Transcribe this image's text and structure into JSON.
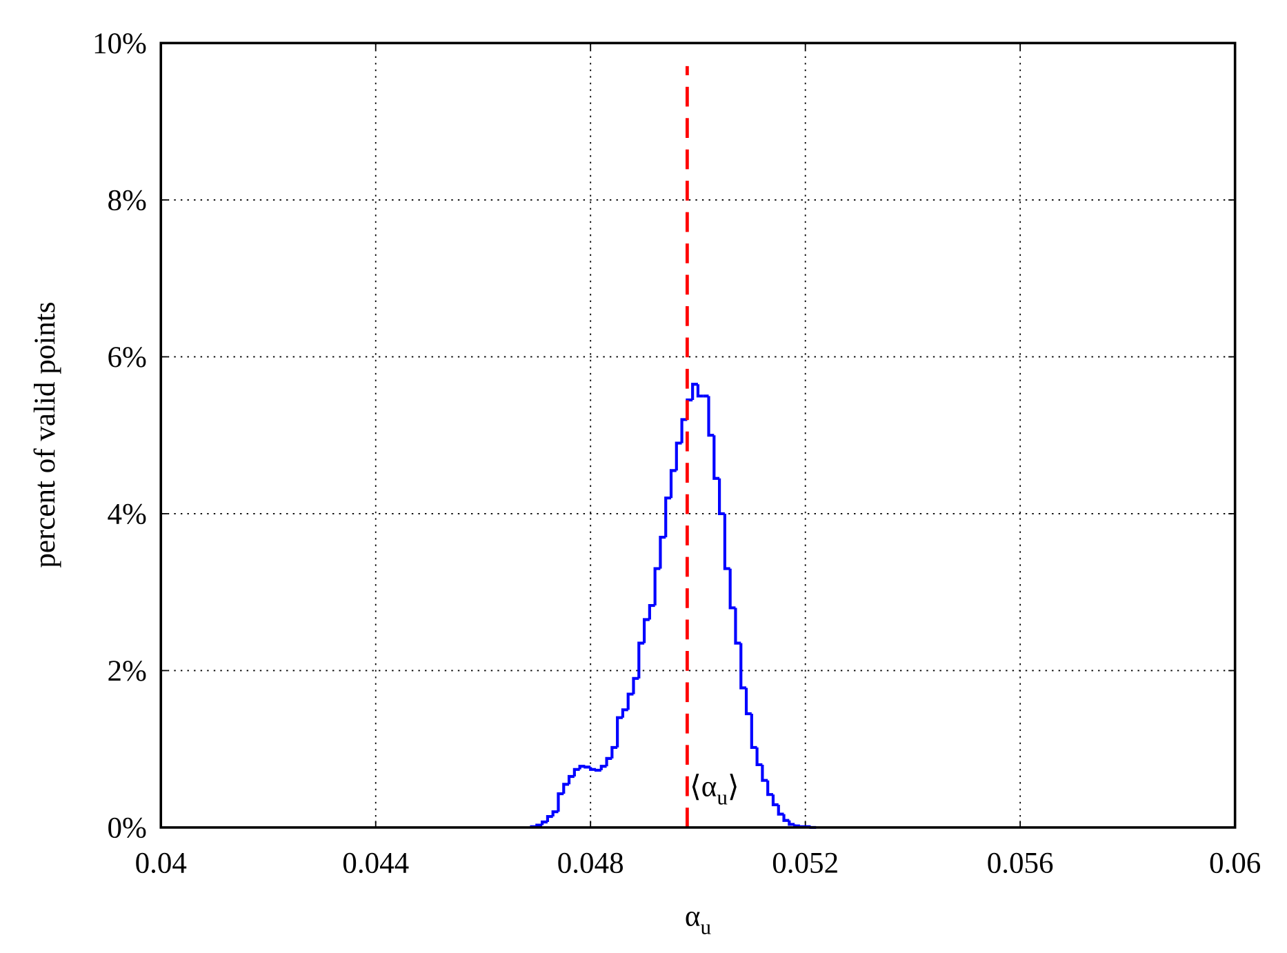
{
  "chart_data": {
    "type": "histogram",
    "step": true,
    "xlabel": [
      "α",
      "u"
    ],
    "ylabel": "percent of valid points",
    "bins": [
      0.0469,
      0.047,
      0.0471,
      0.0472,
      0.0473,
      0.0474,
      0.0475,
      0.0476,
      0.0477,
      0.0478,
      0.0479,
      0.048,
      0.0481,
      0.0482,
      0.0483,
      0.0484,
      0.0485,
      0.0486,
      0.0487,
      0.0488,
      0.0489,
      0.049,
      0.0491,
      0.0492,
      0.0493,
      0.0494,
      0.0495,
      0.0496,
      0.0497,
      0.0498,
      0.0499,
      0.05,
      0.0501,
      0.0502,
      0.0503,
      0.0504,
      0.0505,
      0.0506,
      0.0507,
      0.0508,
      0.0509,
      0.051,
      0.0511,
      0.0512,
      0.0513,
      0.0514,
      0.0515,
      0.0516,
      0.0517,
      0.0518,
      0.0519,
      0.052,
      0.0521,
      0.0522
    ],
    "values": [
      0.01,
      0.03,
      0.07,
      0.14,
      0.2,
      0.43,
      0.55,
      0.65,
      0.74,
      0.78,
      0.77,
      0.74,
      0.73,
      0.78,
      0.88,
      1.02,
      1.4,
      1.5,
      1.7,
      1.9,
      2.35,
      2.65,
      2.83,
      3.3,
      3.7,
      4.2,
      4.55,
      4.9,
      5.2,
      5.45,
      5.65,
      5.5,
      5.5,
      5.0,
      4.45,
      4.0,
      3.3,
      2.8,
      2.35,
      1.78,
      1.45,
      1.02,
      0.8,
      0.6,
      0.42,
      0.29,
      0.17,
      0.09,
      0.04,
      0.02,
      0.01,
      0.01,
      0.0
    ],
    "color": "#0000ff",
    "vline": {
      "x": 0.0498,
      "color": "#ff0000",
      "label": [
        "⟨α",
        "u",
        "⟩"
      ]
    },
    "xlim": [
      0.04,
      0.06
    ],
    "xticks": [
      0.04,
      0.044,
      0.048,
      0.052,
      0.056,
      0.06
    ],
    "ylim": [
      0,
      10
    ],
    "yticks": [
      {
        "value": 0,
        "label": "0%"
      },
      {
        "value": 2,
        "label": "2%"
      },
      {
        "value": 4,
        "label": "4%"
      },
      {
        "value": 6,
        "label": "6%"
      },
      {
        "value": 8,
        "label": "8%"
      },
      {
        "value": 10,
        "label": "10%"
      }
    ],
    "grid": true
  }
}
